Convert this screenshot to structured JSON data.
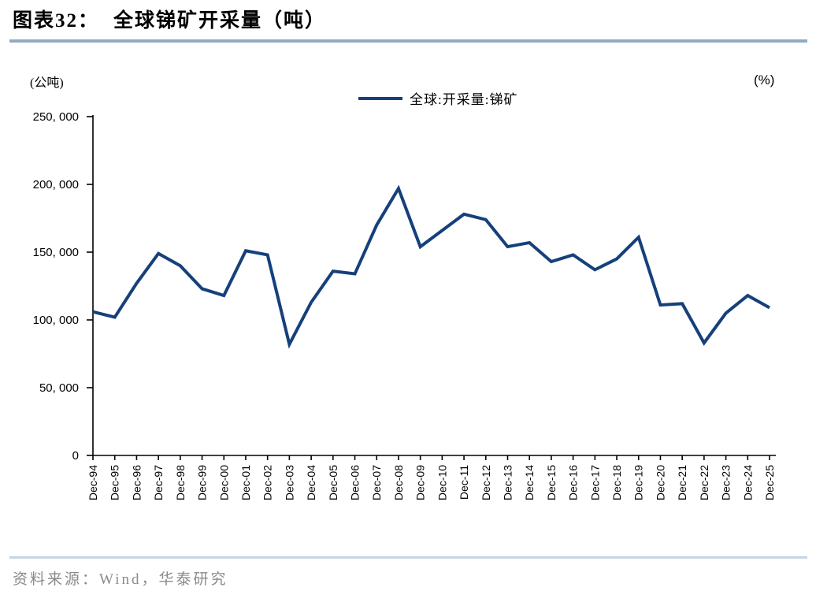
{
  "header": {
    "prefix": "图表32：",
    "title": "全球锑矿开采量（吨）"
  },
  "chart": {
    "left_axis_unit": "(公吨)",
    "right_axis_unit": "(%)",
    "line_color": "#15407B",
    "axis_color": "#000000",
    "title_rule_color": "#91AAC3",
    "footer_rule_color": "#C7D5E1",
    "ytick_labels": [
      "0",
      "50, 000",
      "100, 000",
      "150, 000",
      "200, 000",
      "250, 000"
    ]
  },
  "chart_data": {
    "type": "line",
    "title": "全球锑矿开采量（吨）",
    "xlabel": "",
    "ylabel": "公吨",
    "ylim": [
      0,
      250000
    ],
    "yticks": [
      0,
      50000,
      100000,
      150000,
      200000,
      250000
    ],
    "grid": false,
    "legend_position": "top-center",
    "x": [
      "Dec-94",
      "Dec-95",
      "Dec-96",
      "Dec-97",
      "Dec-98",
      "Dec-99",
      "Dec-00",
      "Dec-01",
      "Dec-02",
      "Dec-03",
      "Dec-04",
      "Dec-05",
      "Dec-06",
      "Dec-07",
      "Dec-08",
      "Dec-09",
      "Dec-10",
      "Dec-11",
      "Dec-12",
      "Dec-13",
      "Dec-14",
      "Dec-15",
      "Dec-16",
      "Dec-17",
      "Dec-18",
      "Dec-19",
      "Dec-20",
      "Dec-21",
      "Dec-22",
      "Dec-23",
      "Dec-24",
      "Dec-25"
    ],
    "series": [
      {
        "name": "全球:开采量:锑矿",
        "values": [
          106000,
          102000,
          127000,
          149000,
          140000,
          123000,
          118000,
          151000,
          148000,
          82000,
          113000,
          136000,
          134000,
          170000,
          197000,
          154000,
          166000,
          178000,
          174000,
          154000,
          157000,
          143000,
          148000,
          137000,
          145000,
          161000,
          111000,
          112000,
          83000,
          105000,
          118000,
          109000
        ]
      }
    ]
  },
  "footer": {
    "source": "资料来源：Wind，华泰研究"
  }
}
